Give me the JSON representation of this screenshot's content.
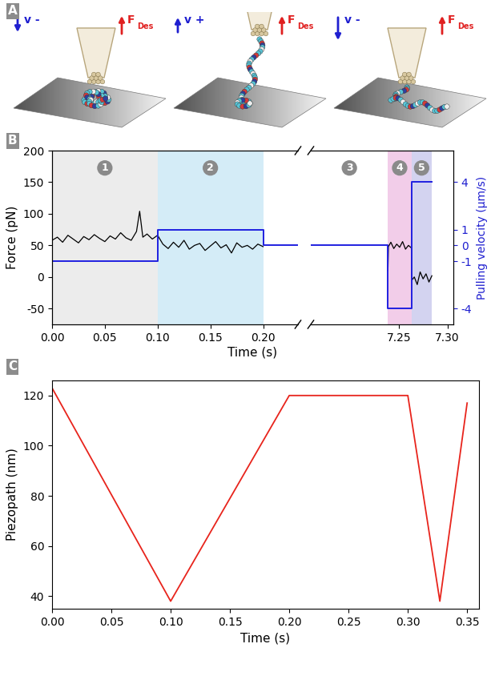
{
  "panel_labels": [
    "A",
    "B",
    "C"
  ],
  "panel_a": {
    "frames": [
      {
        "velocity": "v -",
        "velocity_direction": "down",
        "force": "F Des"
      },
      {
        "velocity": "v +",
        "velocity_direction": "up",
        "force": "F Des"
      },
      {
        "velocity": "v -",
        "velocity_direction": "down",
        "force": "F Des"
      }
    ]
  },
  "chart_data": [
    {
      "type": "line",
      "xlabel": "Time (s)",
      "ylabel": "Force (pN)",
      "y2label": "Pulling velocity (µm/s)",
      "xlim": [
        [
          0,
          0.233
        ],
        [
          7.16,
          7.306
        ]
      ],
      "xticks": [
        {
          "value": 0,
          "label": "0.00"
        },
        0.05,
        {
          "value": 0.1,
          "label": "0.10"
        },
        0.15,
        {
          "value": 0.2,
          "label": "0.20"
        },
        7.25,
        {
          "value": 7.3,
          "label": "7.30"
        }
      ],
      "ylim": [
        -75,
        200
      ],
      "yticks": [
        -50,
        0,
        50,
        100,
        150,
        200
      ],
      "y2lim": [
        -5,
        6
      ],
      "y2ticks": [
        -4,
        -1,
        0,
        1,
        4
      ],
      "regions": [
        {
          "label": "1",
          "start": 0,
          "end": 0.1,
          "color": "#ececec"
        },
        {
          "label": "2",
          "start": 0.1,
          "end": 0.2,
          "color": "#d4ecf7"
        },
        {
          "label": "3",
          "start": 0.2,
          "end": 7.239
        },
        {
          "label": "4",
          "start": 7.239,
          "end": 7.263,
          "color": "#f2cde9"
        },
        {
          "label": "5",
          "start": 7.263,
          "end": 7.284,
          "color": "#d3d3f0"
        }
      ],
      "series": [
        {
          "color": "#000000",
          "x": [
            0,
            0.005,
            0.01,
            0.015,
            0.02,
            0.025,
            0.03,
            0.035,
            0.04,
            0.045,
            0.05,
            0.055,
            0.06,
            0.065,
            0.07,
            0.075,
            0.08,
            0.083,
            0.086,
            0.09,
            0.095,
            0.1,
            0.105,
            0.11,
            0.115,
            0.12,
            0.125,
            0.13,
            0.135,
            0.14,
            0.145,
            0.15,
            0.155,
            0.16,
            0.165,
            0.17,
            0.175,
            0.18,
            0.185,
            0.19,
            0.195,
            0.2,
            0.2,
            7.239,
            7.2395,
            7.242,
            7.245,
            7.248,
            7.251,
            7.254,
            7.257,
            7.26,
            7.263,
            7.2635,
            7.266,
            7.269,
            7.272,
            7.275,
            7.278,
            7.281,
            7.284
          ],
          "values": [
            58,
            63,
            55,
            66,
            60,
            54,
            64,
            59,
            67,
            61,
            56,
            65,
            60,
            70,
            62,
            58,
            72,
            104,
            63,
            68,
            60,
            66,
            52,
            45,
            55,
            47,
            58,
            44,
            50,
            53,
            42,
            49,
            56,
            46,
            51,
            38,
            54,
            47,
            50,
            44,
            52,
            48,
            null,
            10,
            48,
            55,
            45,
            52,
            47,
            56,
            44,
            50,
            46,
            -5,
            0,
            -12,
            8,
            -3,
            5,
            -8,
            2
          ]
        },
        {
          "color": "#2020e0",
          "axis": "y2",
          "x": [
            0,
            0.1,
            0.1,
            0.2,
            0.2,
            7.239,
            7.239,
            7.263,
            7.263,
            7.284
          ],
          "values": [
            -1,
            -1,
            1,
            1,
            0,
            0,
            -4,
            -4,
            4,
            4
          ]
        }
      ]
    },
    {
      "type": "line",
      "xlabel": "Time (s)",
      "ylabel": "Piezopath (nm)",
      "xlim": [
        0,
        0.36
      ],
      "xticks": [
        {
          "value": 0,
          "label": "0.00"
        },
        0.05,
        {
          "value": 0.1,
          "label": "0.10"
        },
        0.15,
        {
          "value": 0.2,
          "label": "0.20"
        },
        0.25,
        {
          "value": 0.3,
          "label": "0.30"
        },
        0.35
      ],
      "ylim": [
        35,
        126
      ],
      "yticks": [
        40,
        60,
        80,
        100,
        120
      ],
      "series": [
        {
          "color": "#e8241c",
          "x": [
            0,
            0.1,
            0.2,
            0.3,
            0.327,
            0.35
          ],
          "values": [
            123,
            38,
            120,
            120,
            38,
            117
          ]
        }
      ]
    }
  ]
}
